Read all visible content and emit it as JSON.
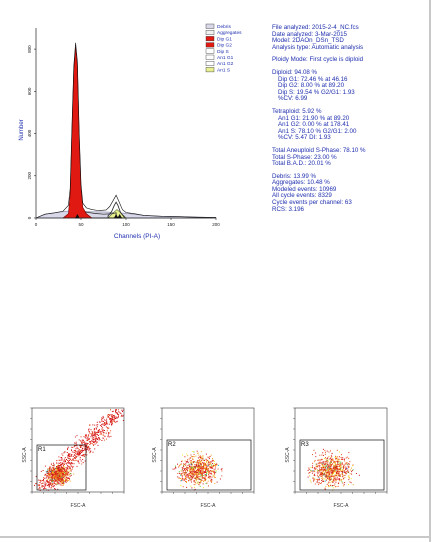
{
  "histogram": {
    "ylabel": "Number",
    "xlabel": "Channels (PI-A)",
    "y_ticks": [
      "0",
      "200",
      "400",
      "600",
      "800"
    ],
    "x_ticks": [
      "0",
      "50",
      "100",
      "150",
      "200"
    ],
    "legend": [
      {
        "label": "Debris",
        "color": "#d8d8e8"
      },
      {
        "label": "Aggregates",
        "color": "#f0f0f0"
      },
      {
        "label": "Dip G1",
        "color": "#e01a12"
      },
      {
        "label": "Dip G2",
        "color": "#e01a12"
      },
      {
        "label": "Dip S",
        "color": "#ffffff"
      },
      {
        "label": "An1 G1",
        "color": "#ffffff"
      },
      {
        "label": "An1 G2",
        "color": "#ffffff"
      },
      {
        "label": "An1 S",
        "color": "#e8f090"
      }
    ]
  },
  "chart_data": {
    "type": "area",
    "title": "",
    "xlabel": "Channels (PI-A)",
    "ylabel": "Number",
    "xlim": [
      0,
      200
    ],
    "ylim": [
      0,
      900
    ],
    "series": [
      {
        "name": "Dip G1",
        "x": [
          30,
          36,
          38,
          40,
          42,
          44,
          46,
          48,
          50,
          52,
          56,
          62
        ],
        "values": [
          0,
          20,
          110,
          420,
          700,
          810,
          720,
          380,
          140,
          50,
          20,
          0
        ]
      },
      {
        "name": "Dip S",
        "x": [
          46,
          55,
          65,
          75,
          85,
          89
        ],
        "values": [
          30,
          28,
          22,
          18,
          20,
          25
        ]
      },
      {
        "name": "Dip G2",
        "x": [
          80,
          84,
          87,
          89,
          91,
          94,
          98
        ],
        "values": [
          10,
          30,
          60,
          75,
          60,
          25,
          5
        ]
      },
      {
        "name": "An1 S",
        "x": [
          80,
          86,
          90,
          94,
          100
        ],
        "values": [
          0,
          25,
          40,
          25,
          0
        ]
      },
      {
        "name": "Debris",
        "x": [
          0,
          10,
          20,
          30,
          40,
          60,
          80,
          100,
          120,
          140,
          160,
          180,
          200
        ],
        "values": [
          0,
          18,
          24,
          30,
          35,
          30,
          28,
          22,
          12,
          8,
          6,
          4,
          3
        ]
      }
    ]
  },
  "info": {
    "file": "File analyzed: 2015-2-4_NC.fcs",
    "date": "Date analyzed: 3-Mar-2015",
    "model": "Model: 2DAOn_DSn_TSD",
    "atype": "Analysis type: Automatic analysis",
    "ploidy": "Ploidy Mode: First cycle is diploid",
    "diploid": "Diploid: 94.08 %",
    "dip_g1": "Dip G1: 72.46 % at 46.16",
    "dip_g2": "Dip G2: 8.00 % at 89.20",
    "dip_s": "Dip S: 19.54 %   G2/G1: 1.93",
    "dip_cv": "%CV: 6.99",
    "tetraploid": "Tetraploid: 5.92 %",
    "an1_g1": "An1 G1: 21.90 % at 89.20",
    "an1_g2": "An1 G2: 0.00 % at 178.41",
    "an1_s": "An1 S: 78.10 %   G2/G1: 2.00",
    "an1_cv": "%CV: 5.47   DI: 1.93",
    "tot_aneu": "Total Aneuploid S-Phase: 78.10 %",
    "tot_s": "Total S-Phase: 23.00 %",
    "tot_bad": "Total B.A.D.: 20.01 %",
    "debris": "Debris: 13.99 %",
    "aggregates": "Aggregates: 10.48 %",
    "modeled": "Modeled events: 10969",
    "allcycle": "All cycle events: 8329",
    "perchannel": "Cycle events per channel: 63",
    "rcs": "RCS: 3.196"
  },
  "scatter_plots": [
    {
      "region": "R1",
      "xlabel": "FSC-A",
      "ylabel": "SSC-A"
    },
    {
      "region": "R2",
      "xlabel": "FSC-A",
      "ylabel": "SSC-A"
    },
    {
      "region": "R3",
      "xlabel": "FSC-A",
      "ylabel": "SSC-A"
    }
  ]
}
